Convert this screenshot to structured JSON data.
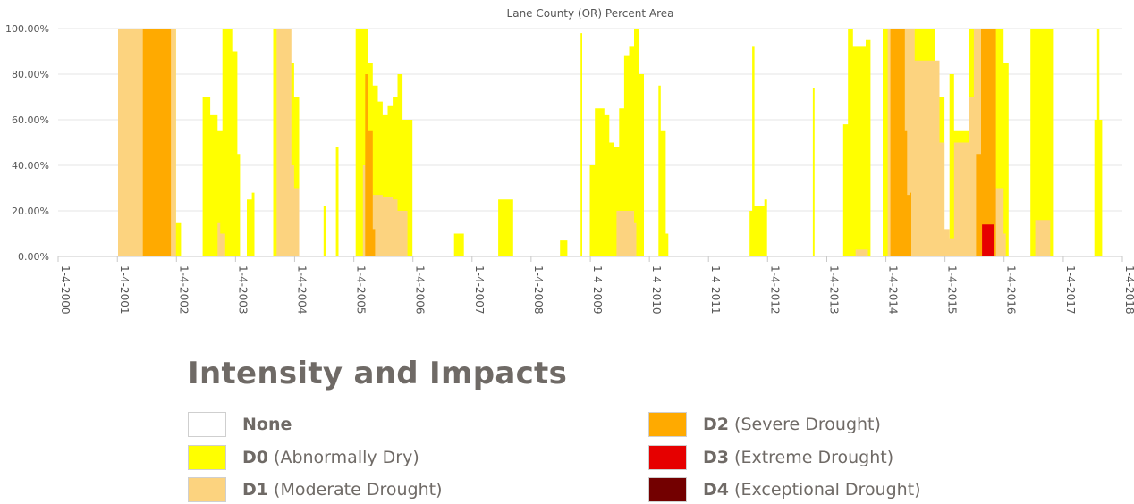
{
  "chart_data": {
    "type": "area",
    "title": "Lane County (OR) Percent Area",
    "y_ticks": [
      "0.00%",
      "20.00%",
      "40.00%",
      "60.00%",
      "80.00%",
      "100.00%"
    ],
    "ylim": [
      0,
      100
    ],
    "x_ticks": [
      "1-4-2000",
      "1-4-2001",
      "1-4-2002",
      "1-4-2003",
      "1-4-2004",
      "1-4-2005",
      "1-4-2006",
      "1-4-2007",
      "1-4-2008",
      "1-4-2009",
      "1-4-2010",
      "1-4-2011",
      "1-4-2012",
      "1-4-2013",
      "1-4-2014",
      "1-4-2015",
      "1-4-2016",
      "1-4-2017",
      "1-4-2018"
    ],
    "xlim": [
      "2000-01-04",
      "2018-01-04"
    ],
    "grid": true,
    "stacking": "cumulative (each band is percent area at or above that category)",
    "series": [
      {
        "name": "D0 (Abnormally Dry)",
        "color": "#FFFF00",
        "points": [
          [
            "2001-01-01",
            0
          ],
          [
            "2001-01-08",
            100
          ],
          [
            "2001-12-20",
            100
          ],
          [
            "2002-01-01",
            15
          ],
          [
            "2002-02-01",
            0
          ],
          [
            "2002-06-01",
            0
          ],
          [
            "2002-06-15",
            70
          ],
          [
            "2002-08-01",
            62
          ],
          [
            "2002-09-15",
            55
          ],
          [
            "2002-10-15",
            100
          ],
          [
            "2002-12-15",
            90
          ],
          [
            "2003-01-15",
            45
          ],
          [
            "2003-02-01",
            0
          ],
          [
            "2003-03-15",
            25
          ],
          [
            "2003-04-15",
            28
          ],
          [
            "2003-05-01",
            0
          ],
          [
            "2003-08-15",
            0
          ],
          [
            "2003-08-25",
            100
          ],
          [
            "2003-12-01",
            85
          ],
          [
            "2004-01-01",
            70
          ],
          [
            "2004-02-01",
            0
          ],
          [
            "2004-06-15",
            0
          ],
          [
            "2004-07-01",
            22
          ],
          [
            "2004-07-15",
            0
          ],
          [
            "2004-09-01",
            0
          ],
          [
            "2004-09-15",
            48
          ],
          [
            "2004-10-01",
            0
          ],
          [
            "2005-01-01",
            0
          ],
          [
            "2005-01-15",
            100
          ],
          [
            "2005-03-15",
            100
          ],
          [
            "2005-04-01",
            85
          ],
          [
            "2005-05-01",
            75
          ],
          [
            "2005-06-01",
            68
          ],
          [
            "2005-07-01",
            62
          ],
          [
            "2005-08-01",
            66
          ],
          [
            "2005-09-01",
            70
          ],
          [
            "2005-10-01",
            80
          ],
          [
            "2005-11-01",
            60
          ],
          [
            "2006-01-01",
            0
          ],
          [
            "2006-09-01",
            0
          ],
          [
            "2006-09-15",
            10
          ],
          [
            "2006-11-01",
            10
          ],
          [
            "2006-11-15",
            0
          ],
          [
            "2007-06-01",
            0
          ],
          [
            "2007-06-15",
            25
          ],
          [
            "2007-09-01",
            25
          ],
          [
            "2007-09-15",
            0
          ],
          [
            "2008-06-15",
            0
          ],
          [
            "2008-07-01",
            7
          ],
          [
            "2008-08-01",
            7
          ],
          [
            "2008-08-15",
            0
          ],
          [
            "2008-11-01",
            0
          ],
          [
            "2008-11-05",
            98
          ],
          [
            "2008-11-15",
            0
          ],
          [
            "2009-01-01",
            40
          ],
          [
            "2009-02-01",
            65
          ],
          [
            "2009-04-01",
            62
          ],
          [
            "2009-05-01",
            50
          ],
          [
            "2009-06-01",
            48
          ],
          [
            "2009-07-01",
            65
          ],
          [
            "2009-08-01",
            88
          ],
          [
            "2009-09-01",
            92
          ],
          [
            "2009-10-01",
            100
          ],
          [
            "2009-11-01",
            80
          ],
          [
            "2009-12-01",
            0
          ],
          [
            "2010-02-15",
            0
          ],
          [
            "2010-03-01",
            75
          ],
          [
            "2010-03-15",
            55
          ],
          [
            "2010-04-15",
            10
          ],
          [
            "2010-05-01",
            0
          ],
          [
            "2011-09-01",
            0
          ],
          [
            "2011-09-15",
            20
          ],
          [
            "2011-10-01",
            92
          ],
          [
            "2011-10-15",
            22
          ],
          [
            "2011-12-15",
            25
          ],
          [
            "2012-01-01",
            0
          ],
          [
            "2012-10-01",
            0
          ],
          [
            "2012-10-10",
            74
          ],
          [
            "2012-10-20",
            0
          ],
          [
            "2013-04-01",
            0
          ],
          [
            "2013-04-15",
            58
          ],
          [
            "2013-05-15",
            100
          ],
          [
            "2013-06-15",
            92
          ],
          [
            "2013-09-01",
            95
          ],
          [
            "2013-10-01",
            0
          ],
          [
            "2013-12-01",
            0
          ],
          [
            "2013-12-15",
            100
          ],
          [
            "2014-10-01",
            100
          ],
          [
            "2014-11-01",
            70
          ],
          [
            "2015-01-01",
            0
          ],
          [
            "2015-02-01",
            80
          ],
          [
            "2015-03-01",
            55
          ],
          [
            "2015-05-01",
            55
          ],
          [
            "2015-06-01",
            100
          ],
          [
            "2015-12-01",
            100
          ],
          [
            "2016-01-01",
            85
          ],
          [
            "2016-02-01",
            0
          ],
          [
            "2016-06-01",
            0
          ],
          [
            "2016-06-15",
            100
          ],
          [
            "2016-10-15",
            100
          ],
          [
            "2016-11-01",
            0
          ],
          [
            "2017-07-01",
            0
          ],
          [
            "2017-07-15",
            60
          ],
          [
            "2017-08-01",
            100
          ],
          [
            "2017-08-15",
            60
          ],
          [
            "2017-09-01",
            0
          ]
        ]
      },
      {
        "name": "D1 (Moderate Drought)",
        "color": "#FCD37F",
        "points": [
          [
            "2001-01-01",
            0
          ],
          [
            "2001-01-08",
            100
          ],
          [
            "2001-12-15",
            100
          ],
          [
            "2002-01-01",
            0
          ],
          [
            "2002-09-01",
            0
          ],
          [
            "2002-09-15",
            15
          ],
          [
            "2002-10-01",
            10
          ],
          [
            "2002-11-01",
            0
          ],
          [
            "2003-09-01",
            0
          ],
          [
            "2003-09-15",
            100
          ],
          [
            "2003-12-15",
            40
          ],
          [
            "2004-01-01",
            30
          ],
          [
            "2004-02-01",
            0
          ],
          [
            "2005-02-15",
            0
          ],
          [
            "2005-03-01",
            40
          ],
          [
            "2005-04-01",
            30
          ],
          [
            "2005-05-01",
            27
          ],
          [
            "2005-07-01",
            26
          ],
          [
            "2005-09-01",
            25
          ],
          [
            "2005-10-01",
            20
          ],
          [
            "2005-12-01",
            0
          ],
          [
            "2009-06-01",
            0
          ],
          [
            "2009-06-15",
            20
          ],
          [
            "2009-10-01",
            15
          ],
          [
            "2009-10-15",
            0
          ],
          [
            "2013-06-15",
            0
          ],
          [
            "2013-07-01",
            3
          ],
          [
            "2013-09-01",
            3
          ],
          [
            "2013-09-15",
            0
          ],
          [
            "2014-01-01",
            0
          ],
          [
            "2014-01-15",
            100
          ],
          [
            "2014-06-01",
            100
          ],
          [
            "2014-07-01",
            86
          ],
          [
            "2014-11-01",
            86
          ],
          [
            "2014-12-01",
            50
          ],
          [
            "2015-01-01",
            12
          ],
          [
            "2015-02-01",
            8
          ],
          [
            "2015-03-01",
            50
          ],
          [
            "2015-05-01",
            50
          ],
          [
            "2015-06-01",
            70
          ],
          [
            "2015-07-01",
            100
          ],
          [
            "2015-10-01",
            100
          ],
          [
            "2015-11-15",
            30
          ],
          [
            "2016-01-01",
            10
          ],
          [
            "2016-01-15",
            0
          ],
          [
            "2016-07-01",
            0
          ],
          [
            "2016-07-15",
            16
          ],
          [
            "2016-10-01",
            16
          ],
          [
            "2016-10-15",
            0
          ]
        ]
      },
      {
        "name": "D2 (Severe Drought)",
        "color": "#FFAA00",
        "points": [
          [
            "2001-06-01",
            0
          ],
          [
            "2001-06-10",
            100
          ],
          [
            "2001-11-20",
            100
          ],
          [
            "2001-12-01",
            0
          ],
          [
            "2005-03-01",
            0
          ],
          [
            "2005-03-15",
            80
          ],
          [
            "2005-04-01",
            55
          ],
          [
            "2005-05-01",
            12
          ],
          [
            "2005-05-15",
            0
          ],
          [
            "2014-01-15",
            0
          ],
          [
            "2014-02-01",
            100
          ],
          [
            "2014-04-15",
            100
          ],
          [
            "2014-05-01",
            55
          ],
          [
            "2014-05-15",
            27
          ],
          [
            "2014-06-01",
            28
          ],
          [
            "2014-06-10",
            0
          ],
          [
            "2015-07-01",
            0
          ],
          [
            "2015-07-15",
            45
          ],
          [
            "2015-08-15",
            100
          ],
          [
            "2015-11-01",
            100
          ],
          [
            "2015-11-15",
            0
          ]
        ]
      },
      {
        "name": "D3 (Extreme Drought)",
        "color": "#E60000",
        "points": [
          [
            "2015-08-20",
            0
          ],
          [
            "2015-08-21",
            14
          ],
          [
            "2015-11-01",
            14
          ],
          [
            "2015-11-02",
            0
          ]
        ]
      },
      {
        "name": "D4 (Exceptional Drought)",
        "color": "#730000",
        "points": []
      }
    ]
  },
  "legend": {
    "title": "Intensity and Impacts",
    "items": [
      {
        "code": "None",
        "desc": "",
        "color": "#FFFFFF"
      },
      {
        "code": "D0",
        "desc": "(Abnormally Dry)",
        "color": "#FFFF00"
      },
      {
        "code": "D1",
        "desc": "(Moderate Drought)",
        "color": "#FCD37F"
      },
      {
        "code": "D2",
        "desc": "(Severe Drought)",
        "color": "#FFAA00"
      },
      {
        "code": "D3",
        "desc": "(Extreme Drought)",
        "color": "#E60000"
      },
      {
        "code": "D4",
        "desc": "(Exceptional Drought)",
        "color": "#730000"
      }
    ]
  }
}
